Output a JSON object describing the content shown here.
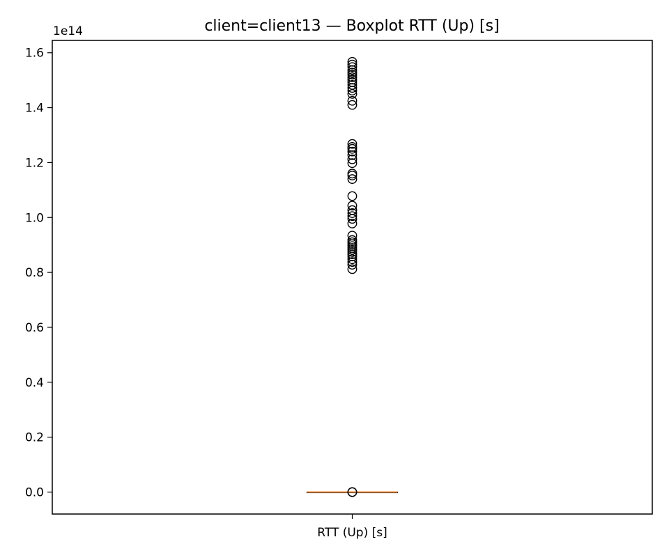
{
  "chart_data": {
    "type": "boxplot",
    "title": "client=client13 — Boxplot RTT (Up) [s]",
    "xlabel": "",
    "ylabel": "",
    "y_multiplier_label": "1e14",
    "y_multiplier": 100000000000000.0,
    "categories": [
      "RTT (Up) [s]"
    ],
    "ylim": [
      -0.08,
      1.645
    ],
    "yticks": [
      0.0,
      0.2,
      0.4,
      0.6,
      0.8,
      1.0,
      1.2,
      1.4,
      1.6
    ],
    "ytick_labels": [
      "0.0",
      "0.2",
      "0.4",
      "0.6",
      "0.8",
      "1.0",
      "1.2",
      "1.4",
      "1.6"
    ],
    "grid": false,
    "legend": "none",
    "colors": {
      "median": "#e8883a",
      "box": "#000000",
      "outlier": "#000000"
    },
    "box": {
      "whisker_low": 0.0,
      "q1": 0.0,
      "median": 0.0,
      "q3": 0.0,
      "whisker_high": 0.0,
      "outliers": [
        0.0,
        0.0,
        0.0,
        0.812,
        0.828,
        0.838,
        0.848,
        0.858,
        0.866,
        0.874,
        0.882,
        0.889,
        0.896,
        0.903,
        0.91,
        0.918,
        0.934,
        0.978,
        0.995,
        1.005,
        1.016,
        1.027,
        1.043,
        1.078,
        1.14,
        1.153,
        1.16,
        1.198,
        1.212,
        1.227,
        1.24,
        1.25,
        1.257,
        1.268,
        1.41,
        1.425,
        1.45,
        1.462,
        1.472,
        1.483,
        1.493,
        1.502,
        1.511,
        1.52,
        1.528,
        1.537,
        1.548,
        1.557,
        1.567
      ]
    }
  }
}
